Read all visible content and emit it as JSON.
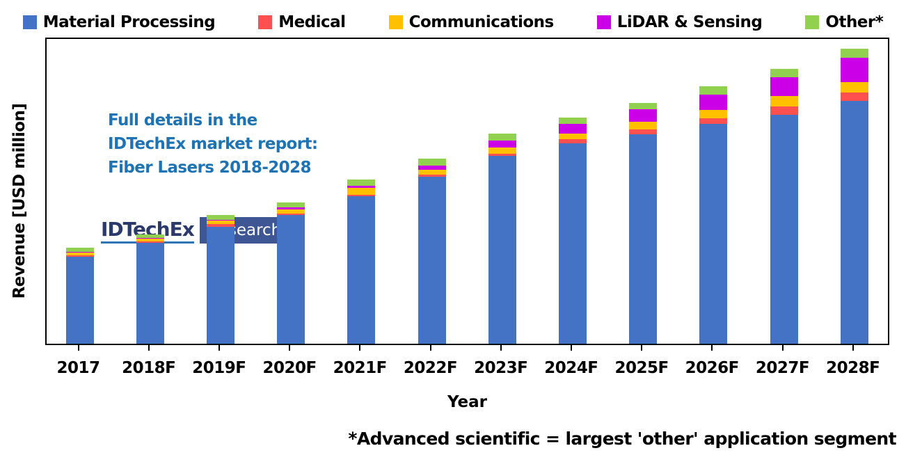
{
  "chart_data": {
    "type": "bar",
    "subtype": "stacked-vertical",
    "title": "",
    "xlabel": "Year",
    "ylabel": "Revenue [USD million]",
    "categories": [
      "2017",
      "2018F",
      "2019F",
      "2020F",
      "2021F",
      "2022F",
      "2023F",
      "2024F",
      "2025F",
      "2026F",
      "2027F",
      "2028F"
    ],
    "series": [
      {
        "name": "Material Processing",
        "color": "#4472C4",
        "values": [
          125,
          145,
          168,
          185,
          212,
          240,
          270,
          288,
          301,
          316,
          329,
          349
        ]
      },
      {
        "name": "Medical",
        "color": "#FF5050",
        "values": [
          2,
          2.5,
          4,
          2.5,
          2.5,
          3,
          3.5,
          6,
          7,
          8.5,
          12,
          12.5
        ]
      },
      {
        "name": "Communications",
        "color": "#FFC000",
        "values": [
          4.5,
          4,
          5,
          6,
          9.5,
          7.5,
          8.5,
          8.5,
          11.5,
          11.5,
          15,
          15
        ]
      },
      {
        "name": "LiDAR & Sensing",
        "color": "#CC00E6",
        "values": [
          1,
          1,
          1,
          2.5,
          3.5,
          6,
          10.5,
          13.5,
          17.5,
          22.5,
          27.5,
          35
        ]
      },
      {
        "name": "Other*",
        "color": "#92D050",
        "values": [
          5.5,
          5,
          7,
          7,
          8.5,
          10,
          9.5,
          9,
          9.5,
          11.5,
          12,
          12.5
        ]
      }
    ],
    "legend_position": "top",
    "grid": false,
    "y_axis_tick_labels": "none",
    "value_units": "relative px heights (y-axis shows no numeric scale; plot height = 442px)"
  },
  "annotation": {
    "lines": [
      "Full details in the",
      "IDTechEx market report:",
      "Fiber Lasers 2018-2028"
    ],
    "color": "#1E73B5"
  },
  "logo": {
    "brand": "IDTechEx",
    "suffix": "Research",
    "brand_color": "#2B3A6B",
    "underline_color": "#2E75B6",
    "box_color": "#3E5693"
  },
  "footnote": "*Advanced scientific = largest 'other' application segment",
  "axis_color": "#000000",
  "background_color": "#FFFFFF"
}
